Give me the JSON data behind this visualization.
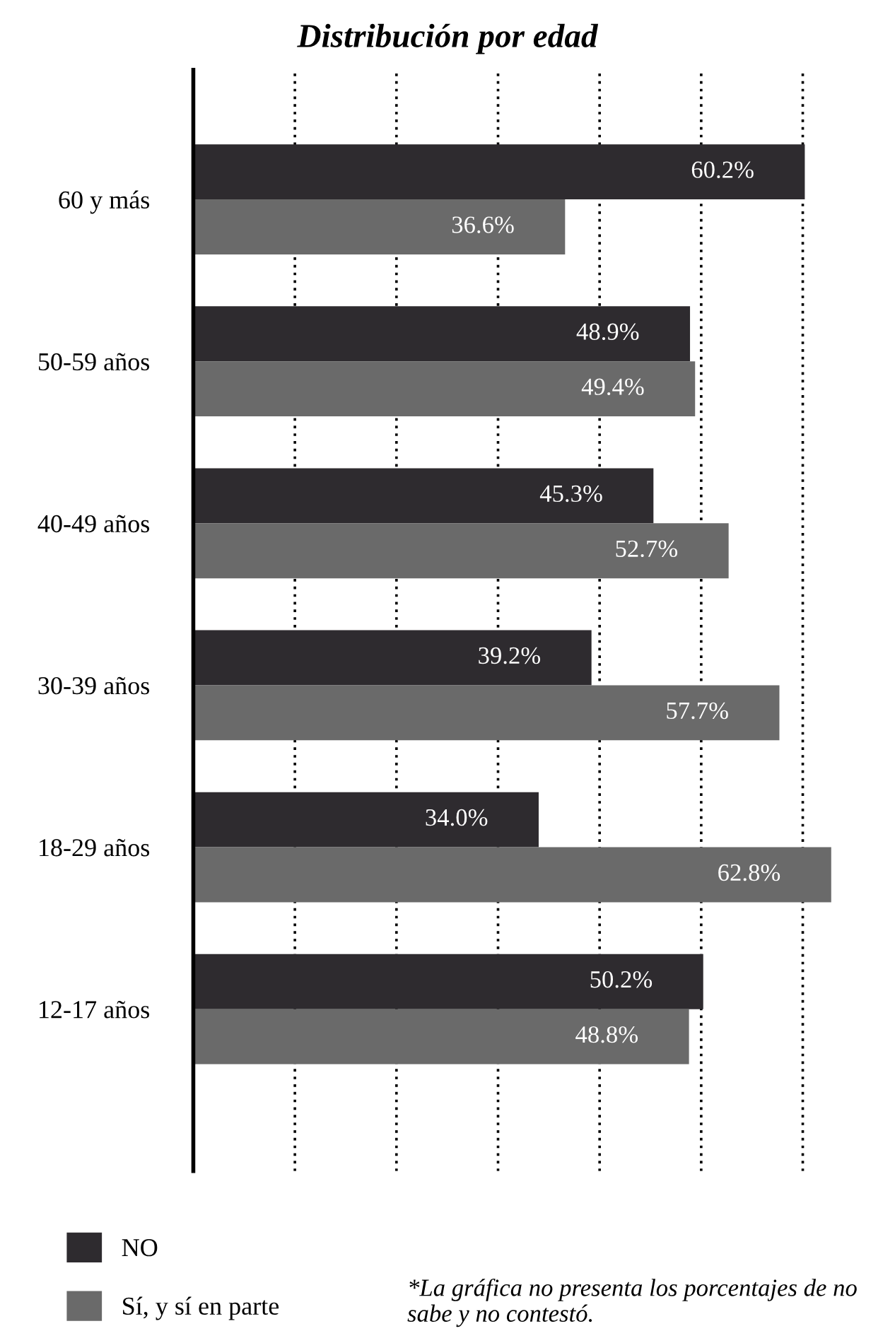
{
  "chart_data": {
    "type": "bar",
    "orientation": "horizontal",
    "title": "Distribución por edad",
    "categories": [
      "60 y más",
      "50-59 años",
      "40-49 años",
      "30-39 años",
      "18-29 años",
      "12-17 años"
    ],
    "series": [
      {
        "name": "NO",
        "color": "#2e2b2f",
        "values": [
          60.2,
          48.9,
          45.3,
          39.2,
          34.0,
          50.2
        ],
        "value_labels": [
          "60.2%",
          "48.9%",
          "45.3%",
          "39.2%",
          "34.0%",
          "50.2%"
        ]
      },
      {
        "name": "Sí, y sí en parte",
        "color": "#6a6a6a",
        "values": [
          36.6,
          49.4,
          52.7,
          57.7,
          62.8,
          48.8
        ],
        "value_labels": [
          "36.6%",
          "49.4%",
          "52.7%",
          "57.7%",
          "62.8%",
          "48.8%"
        ]
      }
    ],
    "xticks": [
      {
        "value": 10,
        "label": null
      },
      {
        "value": 20,
        "label": null
      },
      {
        "value": 30,
        "label": null
      },
      {
        "value": 40,
        "label": null
      },
      {
        "value": 50,
        "label": null
      },
      {
        "value": 60,
        "label": null
      }
    ],
    "tick_labels": "y",
    "grid": "x",
    "legend": "bottom left",
    "annotations": [
      "*La gráfica no presenta los porcentajes de no sabe y no contestó."
    ]
  }
}
